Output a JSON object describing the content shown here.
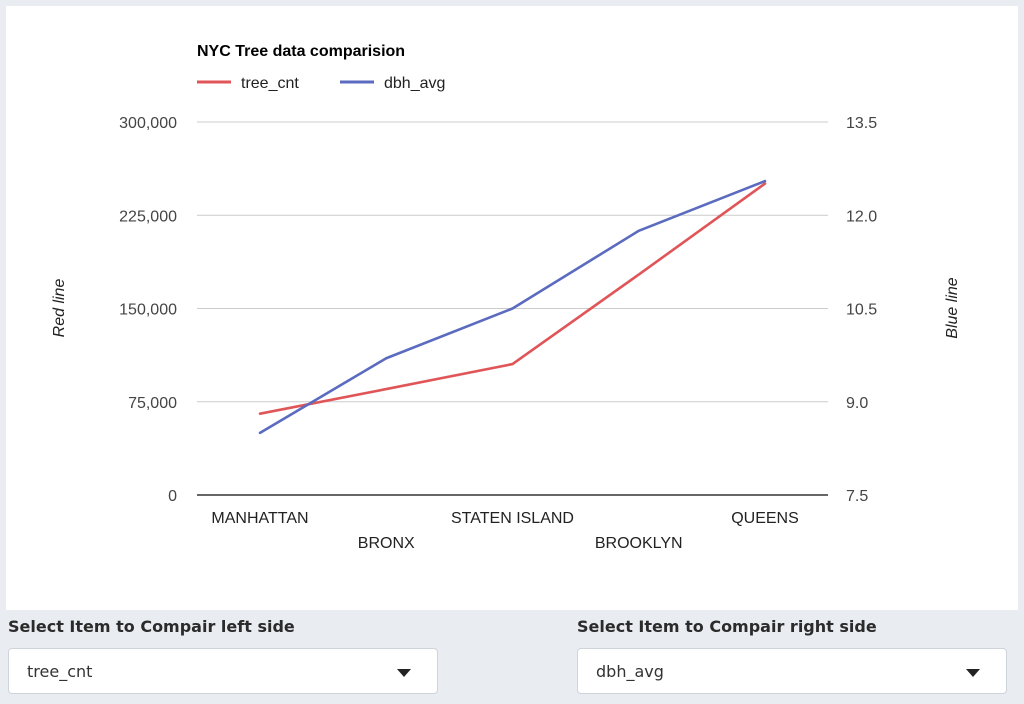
{
  "chart_data": {
    "type": "line",
    "title": "NYC Tree data comparision",
    "categories": [
      "MANHATTAN",
      "BRONX",
      "STATEN ISLAND",
      "BROOKLYN",
      "QUEENS"
    ],
    "y_left": {
      "label": "Red line",
      "range": [
        0,
        300000
      ],
      "ticks": [
        "0",
        "75,000",
        "150,000",
        "225,000",
        "300,000"
      ]
    },
    "y_right": {
      "label": "Blue line",
      "range": [
        7.5,
        13.5
      ],
      "ticks": [
        "7.5",
        "9.0",
        "10.5",
        "12.0",
        "13.5"
      ]
    },
    "series": [
      {
        "name": "tree_cnt",
        "axis": "left",
        "color": "#e05558",
        "values": [
          65400,
          85200,
          105300,
          177300,
          250500
        ]
      },
      {
        "name": "dbh_avg",
        "axis": "right",
        "color": "#5b6bbf",
        "values": [
          8.5,
          9.7,
          10.5,
          11.75,
          12.55
        ]
      }
    ],
    "legend_position": "top-left",
    "grid": true
  },
  "controls": {
    "left": {
      "label": "Select Item to Compair left side",
      "value": "tree_cnt"
    },
    "right": {
      "label": "Select Item to Compair right side",
      "value": "dbh_avg"
    }
  }
}
